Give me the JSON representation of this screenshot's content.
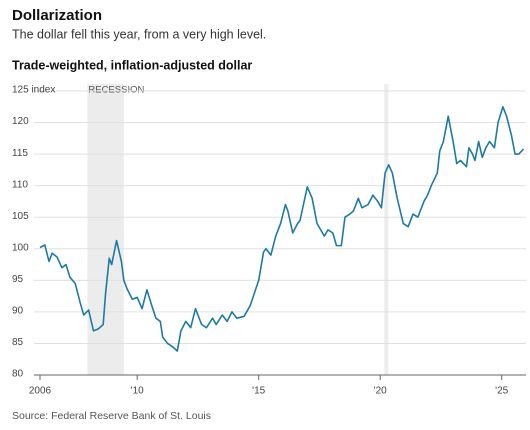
{
  "chart_data": {
    "type": "line",
    "title": "Dollarization",
    "subtitle": "The dollar fell this year, from a very high level.",
    "chart_title": "Trade-weighted, inflation-adjusted dollar",
    "source": "Source: Federal Reserve Bank of St. Louis",
    "color": "#1f7aa3",
    "recession_label": "RECESSION",
    "recessions": [
      [
        2007.95,
        2009.45
      ],
      [
        2020.17,
        2020.33
      ]
    ],
    "x": [
      2006.0,
      2006.2,
      2006.37,
      2006.5,
      2006.7,
      2006.9,
      2007.07,
      2007.23,
      2007.45,
      2007.65,
      2007.8,
      2008.0,
      2008.2,
      2008.4,
      2008.6,
      2008.7,
      2008.85,
      2008.95,
      2009.15,
      2009.35,
      2009.45,
      2009.6,
      2009.8,
      2010.0,
      2010.2,
      2010.4,
      2010.6,
      2010.77,
      2010.95,
      2011.05,
      2011.25,
      2011.45,
      2011.65,
      2011.8,
      2012.0,
      2012.2,
      2012.4,
      2012.65,
      2012.85,
      2013.1,
      2013.25,
      2013.5,
      2013.7,
      2013.9,
      2014.1,
      2014.4,
      2014.65,
      2015.0,
      2015.2,
      2015.3,
      2015.5,
      2015.7,
      2015.9,
      2016.1,
      2016.2,
      2016.4,
      2016.6,
      2016.7,
      2017.0,
      2017.2,
      2017.4,
      2017.7,
      2017.85,
      2018.05,
      2018.2,
      2018.4,
      2018.55,
      2018.75,
      2018.9,
      2019.1,
      2019.25,
      2019.5,
      2019.7,
      2019.9,
      2020.05,
      2020.2,
      2020.35,
      2020.5,
      2020.7,
      2020.95,
      2021.15,
      2021.35,
      2021.55,
      2021.8,
      2021.95,
      2022.1,
      2022.35,
      2022.45,
      2022.6,
      2022.8,
      2023.0,
      2023.15,
      2023.3,
      2023.55,
      2023.65,
      2023.8,
      2023.9,
      2024.05,
      2024.2,
      2024.35,
      2024.5,
      2024.7,
      2024.85,
      2025.05,
      2025.2,
      2025.4,
      2025.55,
      2025.7,
      2025.9
    ],
    "values": [
      100.2,
      100.6,
      98,
      99.3,
      98.7,
      97,
      97.5,
      95.5,
      94.5,
      91.5,
      89.5,
      90.3,
      87,
      87.3,
      88,
      93,
      98.5,
      97.5,
      101.3,
      98,
      95,
      93.5,
      92,
      92.3,
      90.5,
      93.5,
      91,
      89,
      88.5,
      86,
      85,
      84.5,
      83.8,
      87,
      88.5,
      87.5,
      90.5,
      88,
      87.5,
      89,
      88,
      89.5,
      88.5,
      90,
      89,
      89.3,
      91,
      95,
      99.5,
      100,
      99,
      102,
      104,
      107,
      106,
      102.5,
      104,
      104.5,
      109.8,
      108,
      104,
      102,
      103,
      102.5,
      100.5,
      100.5,
      105,
      105.5,
      106,
      108,
      106.5,
      107,
      108.5,
      107.5,
      106.5,
      112,
      113.3,
      112,
      108,
      104,
      103.5,
      105.5,
      105,
      107.5,
      108.5,
      110,
      112,
      115.5,
      117,
      121,
      117,
      113.5,
      114,
      113,
      116,
      115,
      114,
      117,
      114.5,
      116,
      117,
      116,
      120,
      122.5,
      121,
      118,
      115,
      115,
      115.8
    ],
    "xlim": [
      2006,
      2026
    ],
    "xticks": [
      2006,
      {
        "value": 2010,
        "label": "'10"
      },
      {
        "value": 2015,
        "label": "'15"
      },
      {
        "value": 2020,
        "label": "'20"
      },
      {
        "value": 2025,
        "label": "'25"
      }
    ],
    "ylim": [
      80,
      125
    ],
    "yticks": [
      80,
      85,
      90,
      95,
      100,
      105,
      110,
      115,
      120,
      {
        "value": 125,
        "label": "125 index"
      }
    ],
    "grid": true
  }
}
